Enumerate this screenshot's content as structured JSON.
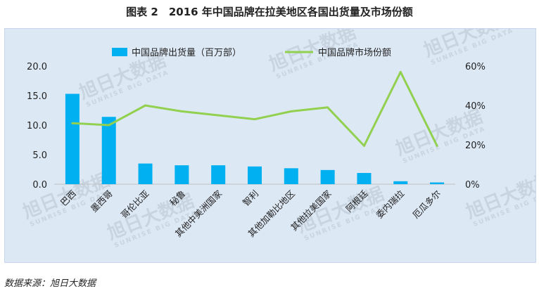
{
  "title": "图表 2　2016 年中国品牌在拉美地区各国出货量及市场份额",
  "source": "数据来源：旭日大数据",
  "watermark": {
    "main": "旭日大数据",
    "sub": "SUNRISE BIG DATA"
  },
  "colors": {
    "bar": "#00b0f0",
    "line": "#92d050",
    "panel": "#dde8f5"
  },
  "chart_data": {
    "type": "bar",
    "categories": [
      "巴西",
      "墨西哥",
      "哥伦比亚",
      "秘鲁",
      "其他中美洲国家",
      "智利",
      "其他加勒比地区",
      "其他拉美国家",
      "阿根廷",
      "委内瑞拉",
      "厄瓜多尔"
    ],
    "series": [
      {
        "name": "中国品牌出货量（百万部）",
        "type": "bar",
        "axis": "left",
        "values": [
          15.3,
          11.4,
          3.5,
          3.2,
          3.2,
          3.0,
          2.7,
          2.4,
          1.9,
          0.5,
          0.3
        ]
      },
      {
        "name": "中国品牌市场份额",
        "type": "line",
        "axis": "right",
        "values": [
          31,
          30,
          40,
          37,
          35,
          33,
          37,
          39,
          19.5,
          57,
          19.5
        ]
      }
    ],
    "y_left": {
      "ylim": [
        0,
        20
      ],
      "ticks": [
        "0.0",
        "5.0",
        "10.0",
        "15.0",
        "20.0"
      ]
    },
    "y_right": {
      "ylim": [
        0,
        60
      ],
      "ticks": [
        "0%",
        "20%",
        "40%",
        "60%"
      ]
    },
    "legend_position": "top-center",
    "grid": false
  }
}
